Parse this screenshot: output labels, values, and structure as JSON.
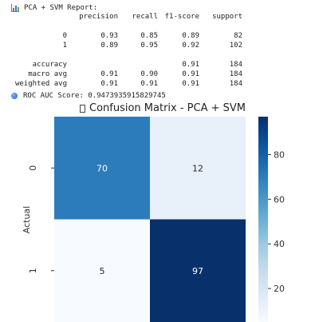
{
  "report": {
    "title": "PCA + SVM Report:",
    "header": {
      "label": "",
      "precision": "precision",
      "recall": "recall",
      "f1": "f1-score",
      "support": "support"
    },
    "rows": [
      {
        "label": "0",
        "precision": "0.93",
        "recall": "0.85",
        "f1": "0.89",
        "support": "82"
      },
      {
        "label": "1",
        "precision": "0.89",
        "recall": "0.95",
        "f1": "0.92",
        "support": "102"
      },
      {
        "label": "",
        "precision": "",
        "recall": "",
        "f1": "",
        "support": ""
      },
      {
        "label": "accuracy",
        "precision": "",
        "recall": "",
        "f1": "0.91",
        "support": "184"
      },
      {
        "label": "macro avg",
        "precision": "0.91",
        "recall": "0.90",
        "f1": "0.91",
        "support": "184"
      },
      {
        "label": "weighted avg",
        "precision": "0.91",
        "recall": "0.91",
        "f1": "0.91",
        "support": "184"
      }
    ],
    "roc_text": "ROC AUC Score: 0.9473935915829745"
  },
  "chart_data": {
    "type": "heatmap",
    "title": "Confusion Matrix - PCA + SVM",
    "ylabel": "Actual",
    "xlabel": "",
    "row_labels": [
      "0",
      "1"
    ],
    "col_labels": [],
    "values": [
      [
        70,
        12
      ],
      [
        5,
        97
      ]
    ],
    "colormap": "Blues",
    "colorbar_ticks": [
      20,
      40,
      60,
      80
    ],
    "colorbar_range": [
      5,
      97
    ],
    "colors": {
      "low": "#f7fbff",
      "high": "#08306b"
    }
  }
}
